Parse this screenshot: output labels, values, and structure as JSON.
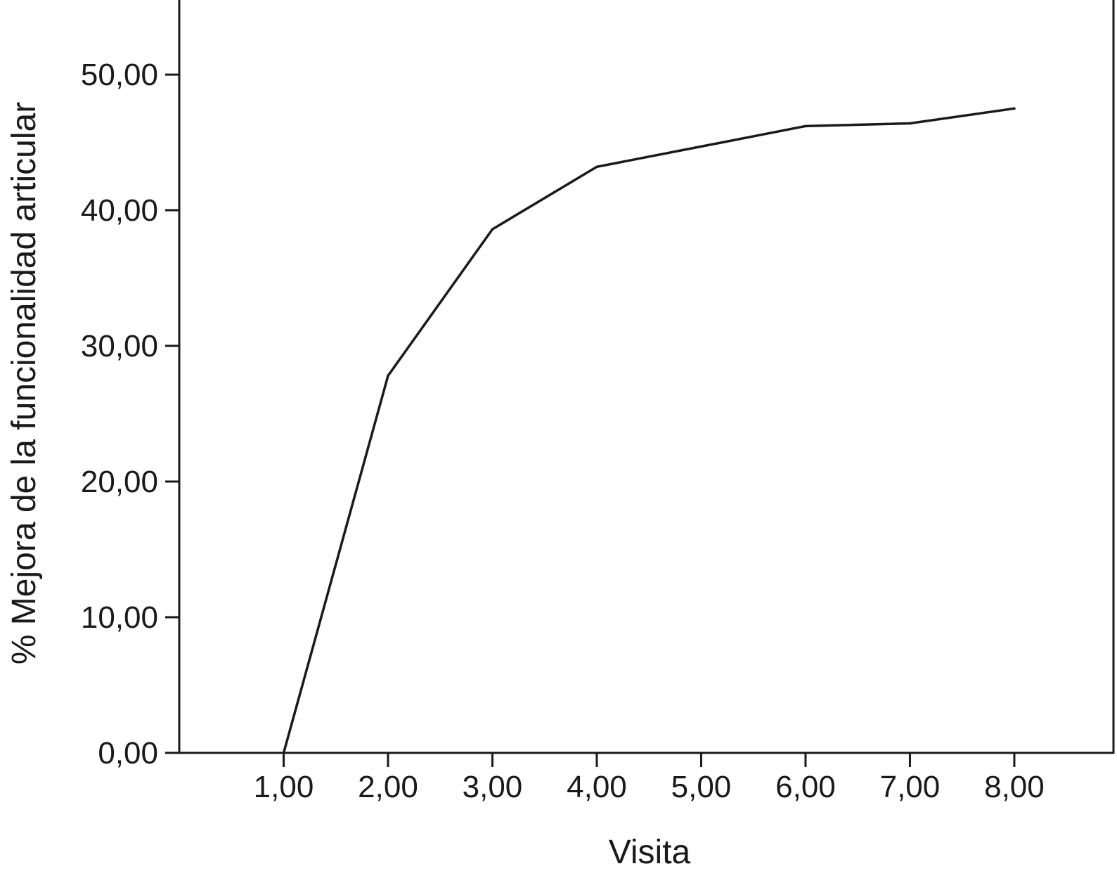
{
  "chart_data": {
    "type": "line",
    "title": "",
    "xlabel": "Visita",
    "ylabel": "% Mejora de la funcionalidad articular",
    "x": [
      1,
      2,
      3,
      4,
      5,
      6,
      7,
      8
    ],
    "x_tick_labels": [
      "1,00",
      "2,00",
      "3,00",
      "4,00",
      "5,00",
      "6,00",
      "7,00",
      "8,00"
    ],
    "xlim": [
      0,
      8.95
    ],
    "y_ticks": [
      0,
      10,
      20,
      30,
      40,
      50
    ],
    "y_tick_labels": [
      "0,00",
      "10,00",
      "20,00",
      "30,00",
      "40,00",
      "50,00"
    ],
    "ylim": [
      0,
      55.6
    ],
    "series": [
      {
        "values": [
          0.0,
          27.8,
          38.6,
          43.2,
          44.7,
          46.2,
          46.4,
          47.5
        ]
      }
    ],
    "grid": false,
    "legend": "none",
    "colors": {
      "line": "#1a1a1a",
      "axis": "#1a1a1a",
      "background": "#ffffff"
    }
  }
}
